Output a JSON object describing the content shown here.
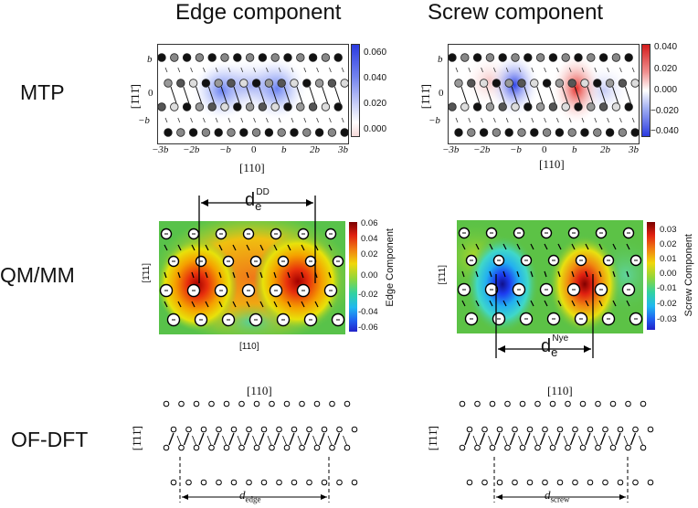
{
  "columns": {
    "edge_title": "Edge component",
    "screw_title": "Screw component"
  },
  "rows": {
    "mtp": "MTP",
    "qmmm": "QM/MM",
    "ofdft": "OF-DFT"
  },
  "mtp": {
    "x_ticks": [
      "−3b",
      "−2b",
      "−b",
      "0",
      "b",
      "2b",
      "3b"
    ],
    "y_ticks": [
      "b",
      "0",
      "−b"
    ],
    "x_label": "[110]",
    "y_label": "[1̄11̄]",
    "edge_colorbar": [
      "0.060",
      "0.040",
      "0.020",
      "0.000"
    ],
    "screw_colorbar": [
      "0.040",
      "0.020",
      "0.000",
      "−0.020",
      "−0.040"
    ]
  },
  "qmmm": {
    "edge_colorbar": [
      "0.06",
      "0.04",
      "0.02",
      "0.00",
      "-0.02",
      "-0.04",
      "-0.06"
    ],
    "screw_colorbar": [
      "0.03",
      "0.02",
      "0.01",
      "0.00",
      "-0.01",
      "-0.02",
      "-0.03"
    ],
    "edge_cbar_label": "Edge Component",
    "screw_cbar_label": "Screw Component",
    "y_label": "[1̄11]",
    "x_label": "[110]",
    "dd_base": "d",
    "dd_sub": "e",
    "dd_sup": "DD",
    "nye_base": "d",
    "nye_sub": "e",
    "nye_sup": "Nye"
  },
  "ofdft": {
    "x_label": "[110]",
    "y_label": "[1̄11̄]",
    "edge_base": "d",
    "edge_sub": "edge",
    "screw_base": "d",
    "screw_sub": "screw"
  }
}
